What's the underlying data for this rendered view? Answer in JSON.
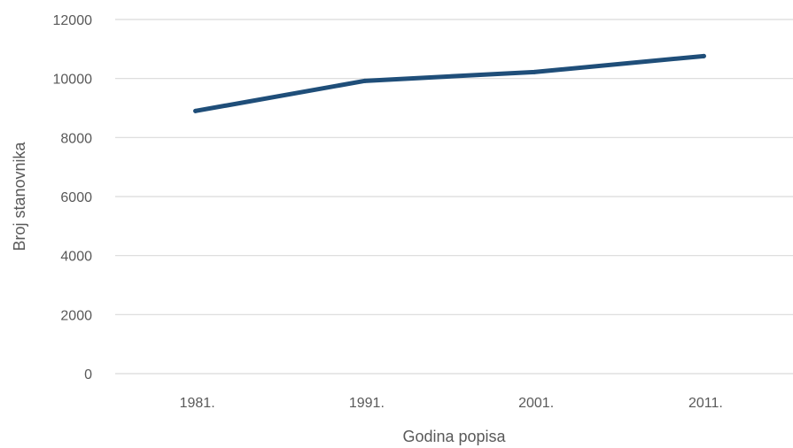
{
  "chart_data": {
    "type": "line",
    "title": "",
    "xlabel": "Godina popisa",
    "ylabel": "Broj stanovnika",
    "categories": [
      "1981.",
      "1991.",
      "2001.",
      "2011."
    ],
    "series": [
      {
        "values": [
          8900,
          9920,
          10220,
          10760
        ],
        "color": "#1f4e79"
      }
    ],
    "ylim": [
      0,
      12000
    ],
    "yticks": [
      0,
      2000,
      4000,
      6000,
      8000,
      10000,
      12000
    ],
    "grid": true,
    "legend": "none"
  }
}
